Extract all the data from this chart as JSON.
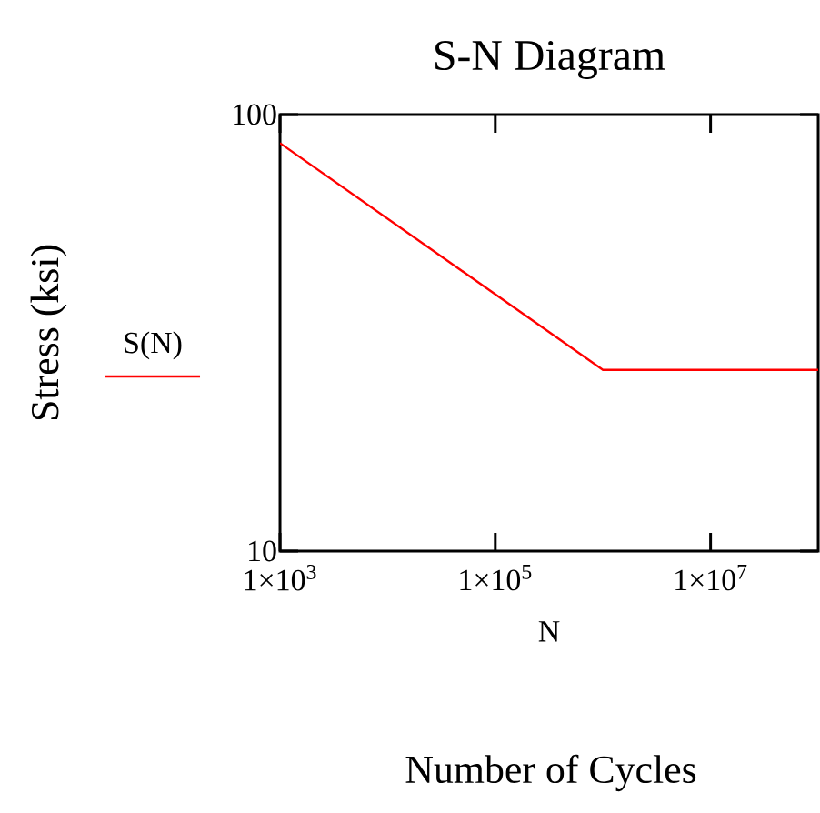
{
  "chart_data": {
    "type": "line",
    "title": "S-N Diagram",
    "xlabel": "N",
    "ylabel": "Stress (ksi)",
    "annotations": [
      "Number of Cycles"
    ],
    "x": [
      1000,
      1000000,
      100000000
    ],
    "series": [
      {
        "name": "S(N)",
        "color": "#ff0000",
        "values": [
          86,
          26,
          26
        ]
      }
    ],
    "log": "xy",
    "xlim": [
      1000,
      100000000
    ],
    "ylim": [
      10,
      100
    ],
    "xticks": [
      {
        "value": 1000,
        "label": "1×10$^{3}$"
      },
      {
        "value": 100000,
        "label": "1×10$^{5}$"
      },
      {
        "value": 10000000,
        "label": "1×10$^{7}$"
      }
    ],
    "yticks": [
      10,
      100
    ],
    "legend": "left",
    "grid": false,
    "marker": "none",
    "line_style": "solid"
  }
}
